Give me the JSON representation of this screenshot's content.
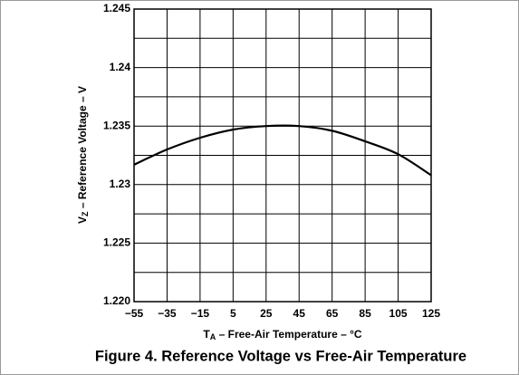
{
  "chart_data": {
    "type": "line",
    "title": "Figure 4. Reference Voltage vs Free-Air Temperature",
    "x_label": [
      "T",
      "A",
      " – Free-Air Temperature – °C"
    ],
    "y_label": [
      "V",
      "Z",
      " – Reference Voltage – V"
    ],
    "x": [
      -55,
      -35,
      -15,
      5,
      25,
      45,
      65,
      85,
      105,
      125
    ],
    "series": [
      {
        "name": "VZ",
        "color": "#000000",
        "values": [
          1.2317,
          1.233,
          1.234,
          1.2347,
          1.235,
          1.235,
          1.2346,
          1.2337,
          1.2326,
          1.2308
        ]
      }
    ],
    "xlim": [
      -55,
      125
    ],
    "xticks": [
      {
        "value": -55,
        "label": "−55"
      },
      {
        "value": -35,
        "label": "−35"
      },
      {
        "value": -15,
        "label": "−15"
      },
      5,
      25,
      45,
      65,
      85,
      105,
      125
    ],
    "ylim": [
      1.22,
      1.245
    ],
    "yticks": [
      {
        "value": 1.22,
        "label": "1.220"
      },
      1.225,
      1.23,
      1.235,
      1.24,
      1.245
    ],
    "ygrid_minor": [
      1.2225,
      1.2275,
      1.2325,
      1.2375,
      1.2425
    ],
    "grid": true
  }
}
